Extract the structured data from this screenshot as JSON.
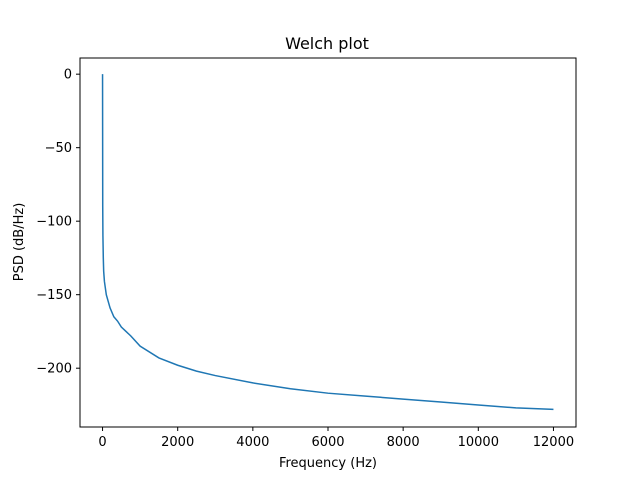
{
  "chart_data": {
    "type": "line",
    "title": "Welch plot",
    "xlabel": "Frequency (Hz)",
    "ylabel": "PSD (dB/Hz)",
    "xlim": [
      -600,
      12600
    ],
    "ylim": [
      -240,
      11
    ],
    "xticks": [
      0,
      2000,
      4000,
      6000,
      8000,
      10000,
      12000
    ],
    "yticks": [
      0,
      -50,
      -100,
      -150,
      -200
    ],
    "ytick_labels": [
      "0",
      "−50",
      "−100",
      "−150",
      "−200"
    ],
    "grid": false,
    "series": [
      {
        "color": "#1f77b4",
        "x": [
          0,
          5,
          10,
          20,
          30,
          50,
          100,
          200,
          300,
          400,
          500,
          750,
          1000,
          1500,
          2000,
          2500,
          3000,
          4000,
          5000,
          6000,
          7000,
          8000,
          9000,
          10000,
          11000,
          12000
        ],
        "y": [
          0,
          -90,
          -110,
          -125,
          -134,
          -141,
          -150,
          -159,
          -165,
          -168,
          -172,
          -178,
          -185,
          -193,
          -198,
          -202,
          -205,
          -210,
          -214,
          -217,
          -219,
          -221,
          -223,
          -225,
          -227,
          -228
        ]
      }
    ]
  }
}
